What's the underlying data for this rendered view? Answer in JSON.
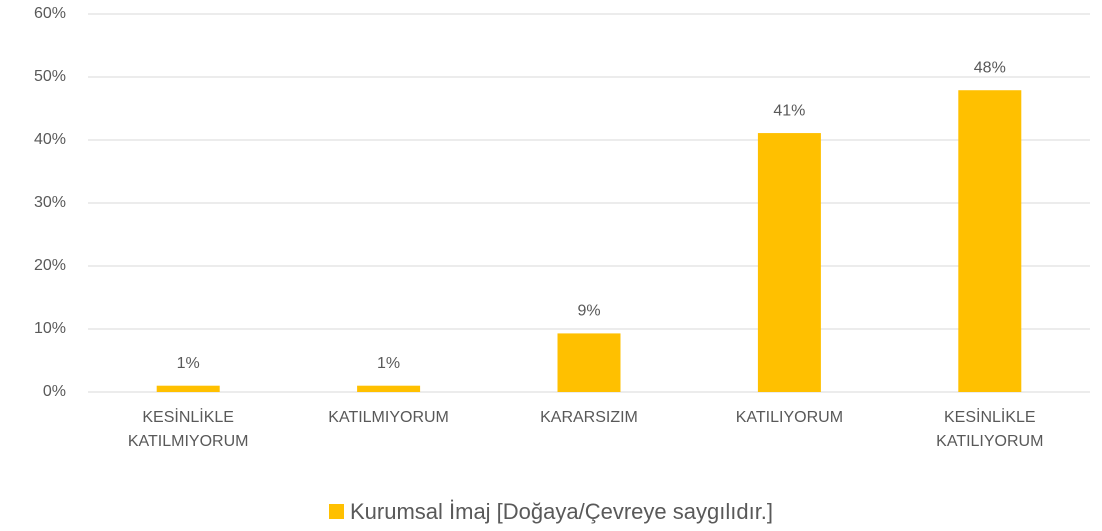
{
  "chart_data": {
    "type": "bar",
    "categories": [
      "KESİNLİKLE KATILMIYORUM",
      "KATILMIYORUM",
      "KARARSIZIM",
      "KATILIYORUM",
      "KESİNLİKLE KATILIYORUM"
    ],
    "series": [
      {
        "name": "Kurumsal İmaj [Doğaya/Çevreye saygılıdır.]",
        "color": "#ffc000",
        "values": [
          1,
          1,
          9.3,
          41.1,
          47.9
        ],
        "value_labels": [
          "1%",
          "1%",
          "9%",
          "41%",
          "48%"
        ]
      }
    ],
    "ylim": [
      0,
      60
    ],
    "yticks": [
      {
        "value": 0,
        "label": "0%"
      },
      {
        "value": 10,
        "label": "10%"
      },
      {
        "value": 20,
        "label": "20%"
      },
      {
        "value": 30,
        "label": "30%"
      },
      {
        "value": 40,
        "label": "40%"
      },
      {
        "value": 50,
        "label": "50%"
      },
      {
        "value": 60,
        "label": "60%"
      }
    ],
    "grid": true,
    "legend": "bottom"
  }
}
